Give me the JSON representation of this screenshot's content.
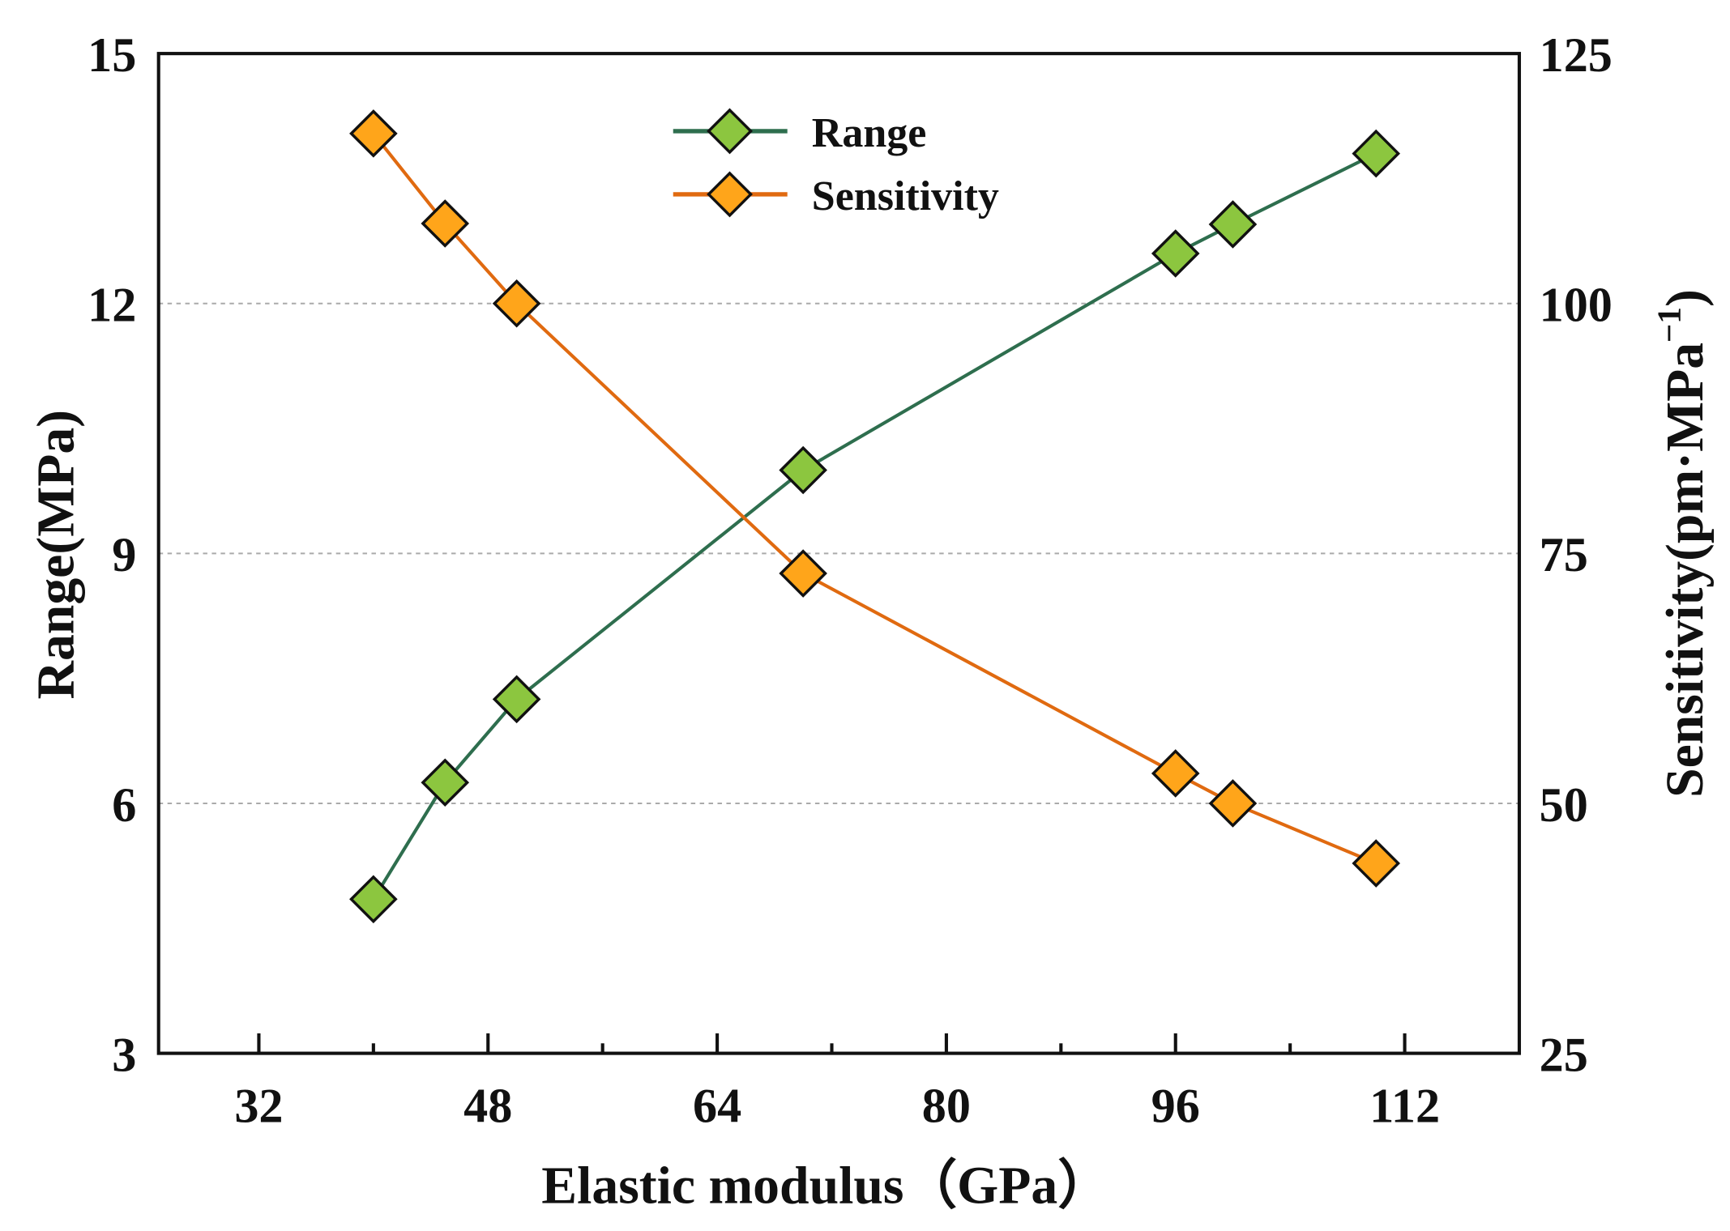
{
  "chart_data": {
    "type": "line",
    "title": "",
    "xlabel": "Elastic modulus（GPa）",
    "ylabel": "Range(MPa)",
    "y2label": "Sensitivity(pm·MPa",
    "y2label_sup": "−1",
    "y2label_close": ")",
    "xlim": [
      25,
      120
    ],
    "ylim": [
      3,
      15
    ],
    "y2lim": [
      25,
      125
    ],
    "xticks": [
      32,
      48,
      64,
      80,
      96,
      112
    ],
    "xminor": [
      40,
      56,
      72,
      88,
      104
    ],
    "yticks": [
      3,
      6,
      9,
      12,
      15
    ],
    "y2ticks": [
      25,
      50,
      75,
      100,
      125
    ],
    "grid": "horizontal dashed",
    "legend_position": "top-center",
    "x": [
      40,
      45,
      50,
      70,
      96,
      100,
      110
    ],
    "series": [
      {
        "name": "Range",
        "axis": "left",
        "color": "#2e6e4e",
        "marker_color": "#8cc63f",
        "values": [
          4.85,
          6.25,
          7.25,
          10.0,
          12.6,
          12.95,
          13.8
        ]
      },
      {
        "name": "Sensitivity",
        "axis": "right",
        "color": "#e06a10",
        "marker_color": "#ffa51a",
        "values": [
          117,
          108,
          100,
          73,
          53,
          50,
          44
        ]
      }
    ]
  }
}
